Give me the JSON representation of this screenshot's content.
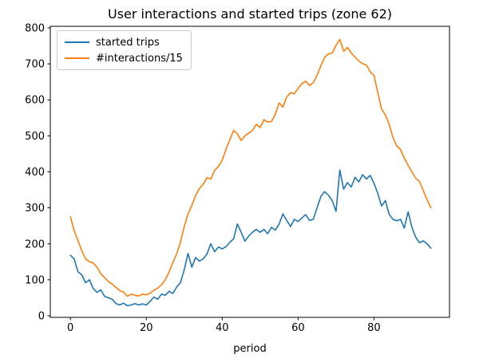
{
  "figure": {
    "title": "User interactions and started trips (zone 62)",
    "xlabel": "period"
  },
  "legend": {
    "items": [
      {
        "label": "started trips",
        "color": "#1f77b4"
      },
      {
        "label": "#interactions/15",
        "color": "#ff7f0e"
      }
    ]
  },
  "chart_data": {
    "type": "line",
    "title": "User interactions and started trips (zone 62)",
    "xlabel": "period",
    "ylabel": "",
    "grid": false,
    "legend_position": "upper left",
    "xlim": [
      -5.3,
      99.9
    ],
    "ylim": [
      -4.4,
      804.4
    ],
    "x_ticks": [
      0,
      20,
      40,
      60,
      80
    ],
    "y_ticks": [
      0,
      100,
      200,
      300,
      400,
      500,
      600,
      700,
      800
    ],
    "x": [
      0,
      1,
      2,
      3,
      4,
      5,
      6,
      7,
      8,
      9,
      10,
      11,
      12,
      13,
      14,
      15,
      16,
      17,
      18,
      19,
      20,
      21,
      22,
      23,
      24,
      25,
      26,
      27,
      28,
      29,
      30,
      31,
      32,
      33,
      34,
      35,
      36,
      37,
      38,
      39,
      40,
      41,
      42,
      43,
      44,
      45,
      46,
      47,
      48,
      49,
      50,
      51,
      52,
      53,
      54,
      55,
      56,
      57,
      58,
      59,
      60,
      61,
      62,
      63,
      64,
      65,
      66,
      67,
      68,
      69,
      70,
      71,
      72,
      73,
      74,
      75,
      76,
      77,
      78,
      79,
      80,
      81,
      82,
      83,
      84,
      85,
      86,
      87,
      88,
      89,
      90,
      91,
      92,
      93,
      94,
      95
    ],
    "series": [
      {
        "name": "started trips",
        "color": "#1f77b4",
        "values": [
          168,
          158,
          122,
          114,
          92,
          100,
          76,
          65,
          72,
          54,
          50,
          46,
          34,
          30,
          35,
          28,
          30,
          34,
          30,
          33,
          30,
          40,
          52,
          46,
          60,
          57,
          68,
          62,
          80,
          92,
          128,
          173,
          135,
          162,
          152,
          158,
          172,
          200,
          178,
          191,
          186,
          192,
          204,
          214,
          255,
          232,
          207,
          222,
          232,
          240,
          232,
          240,
          228,
          246,
          238,
          255,
          283,
          265,
          248,
          268,
          262,
          272,
          281,
          265,
          268,
          300,
          332,
          345,
          335,
          320,
          290,
          405,
          352,
          370,
          358,
          385,
          372,
          392,
          380,
          390,
          368,
          340,
          305,
          320,
          282,
          268,
          264,
          268,
          244,
          289,
          246,
          218,
          203,
          208,
          200,
          188
        ]
      },
      {
        "name": "#interactions/15",
        "color": "#ff7f0e",
        "values": [
          275,
          237,
          208,
          181,
          158,
          150,
          147,
          135,
          117,
          106,
          95,
          88,
          79,
          70,
          66,
          54,
          60,
          57,
          55,
          60,
          58,
          63,
          71,
          77,
          86,
          100,
          122,
          148,
          172,
          205,
          248,
          283,
          307,
          334,
          354,
          365,
          384,
          380,
          404,
          415,
          432,
          463,
          489,
          515,
          506,
          487,
          500,
          508,
          515,
          532,
          523,
          545,
          538,
          540,
          560,
          592,
          580,
          608,
          620,
          617,
          632,
          645,
          652,
          640,
          648,
          668,
          695,
          718,
          728,
          730,
          752,
          768,
          735,
          746,
          730,
          719,
          708,
          701,
          697,
          678,
          668,
          620,
          575,
          558,
          532,
          495,
          472,
          462,
          438,
          418,
          400,
          382,
          373,
          348,
          322,
          300
        ]
      }
    ]
  }
}
